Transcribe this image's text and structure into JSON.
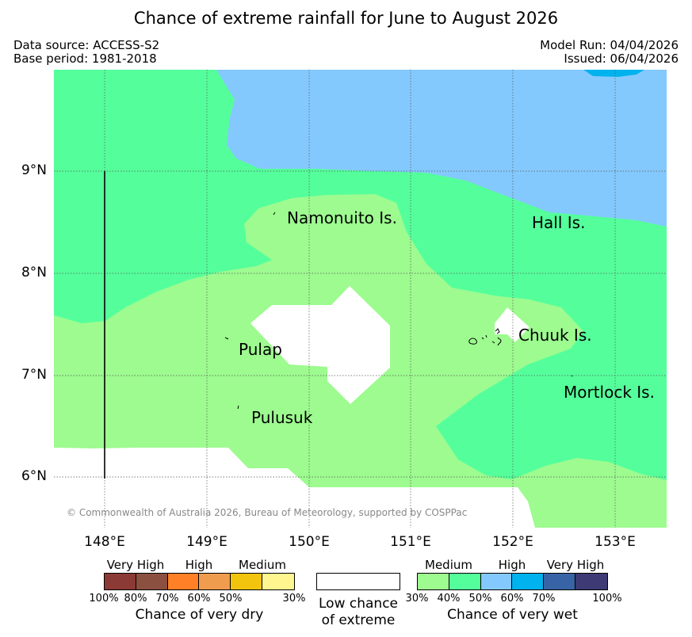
{
  "header": {
    "title": "Chance of extreme rainfall for June to August 2026",
    "data_source": "Data source: ACCESS-S2",
    "base_period": "Base period: 1981-2018",
    "model_run": "Model Run: 04/04/2026",
    "issued": "Issued: 06/04/2026"
  },
  "map": {
    "lat_labels": [
      "9°N",
      "8°N",
      "7°N",
      "6°N"
    ],
    "lon_labels": [
      "148°E",
      "149°E",
      "150°E",
      "151°E",
      "152°E",
      "153°E"
    ],
    "places": [
      "Namonuito Is.",
      "Hall Is.",
      "Chuuk Is.",
      "Pulap",
      "Mortlock Is.",
      "Pulusuk"
    ],
    "copyright": "© Commonwealth of Australia 2026, Bureau of Meteorology, supported by COSPPac",
    "colors": {
      "wet_medium": "#9dfb8f",
      "wet_medium_high": "#54ff9b",
      "wet_high": "#84c9fd",
      "wet_high_70": "#00b2ed",
      "low_chance": "#ffffff"
    }
  },
  "legend": {
    "dry": {
      "tiers": [
        "Very High",
        "High",
        "Medium"
      ],
      "ticks": [
        "100%",
        "80%",
        "70%",
        "60%",
        "50%",
        "30%"
      ],
      "colors": [
        "#8b3a36",
        "#8c5040",
        "#ff8026",
        "#f09c4f",
        "#f2c40e",
        "#fff68f"
      ],
      "caption": "Chance of very dry"
    },
    "low": {
      "caption_line1": "Low chance",
      "caption_line2": "of extreme",
      "color": "#ffffff"
    },
    "wet": {
      "tiers": [
        "Medium",
        "High",
        "Very High"
      ],
      "ticks": [
        "30%",
        "40%",
        "50%",
        "60%",
        "70%",
        "100%"
      ],
      "colors": [
        "#9dfb8f",
        "#54ff9b",
        "#84c9fd",
        "#00b2ed",
        "#3864a5",
        "#3d3a74"
      ],
      "caption": "Chance of very wet"
    }
  }
}
